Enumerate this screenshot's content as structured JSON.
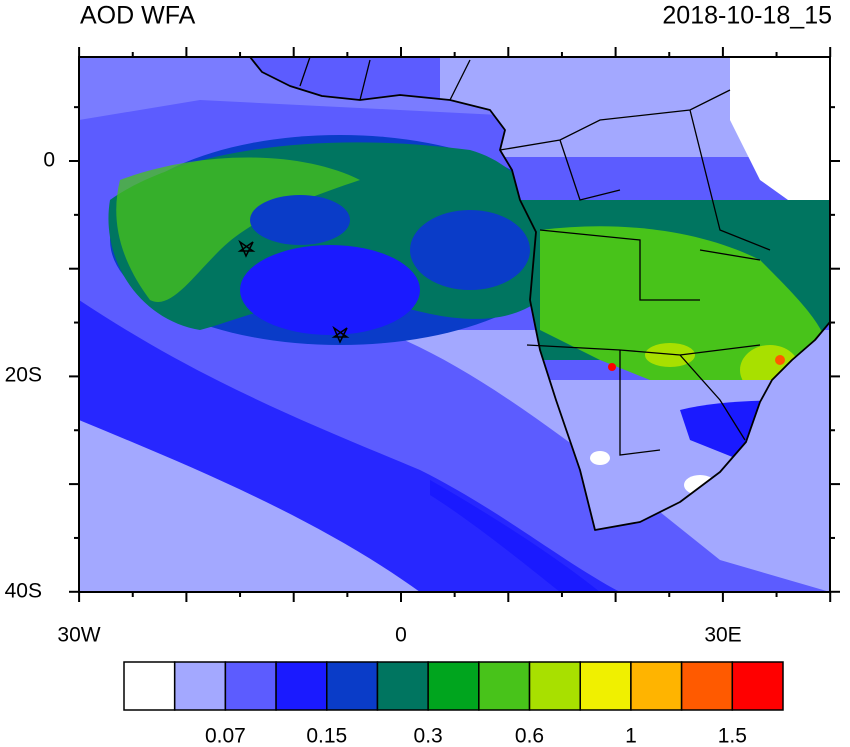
{
  "title": "AOD WFA",
  "timestamp": "2018-10-18_15",
  "map": {
    "lat_labels": [
      "0",
      "20S",
      "40S"
    ],
    "lon_labels": [
      "30W",
      "0",
      "30E"
    ]
  },
  "colorbar": {
    "colors": [
      "#ffffff",
      "#a3a8ff",
      "#5c5cff",
      "#1a1aff",
      "#0a3cc8",
      "#007560",
      "#00a51e",
      "#48c31a",
      "#a8e000",
      "#f0f000",
      "#ffb400",
      "#ff5a00",
      "#ff0000"
    ],
    "labels": [
      "0.07",
      "0.15",
      "0.3",
      "0.6",
      "1",
      "1.5"
    ]
  }
}
